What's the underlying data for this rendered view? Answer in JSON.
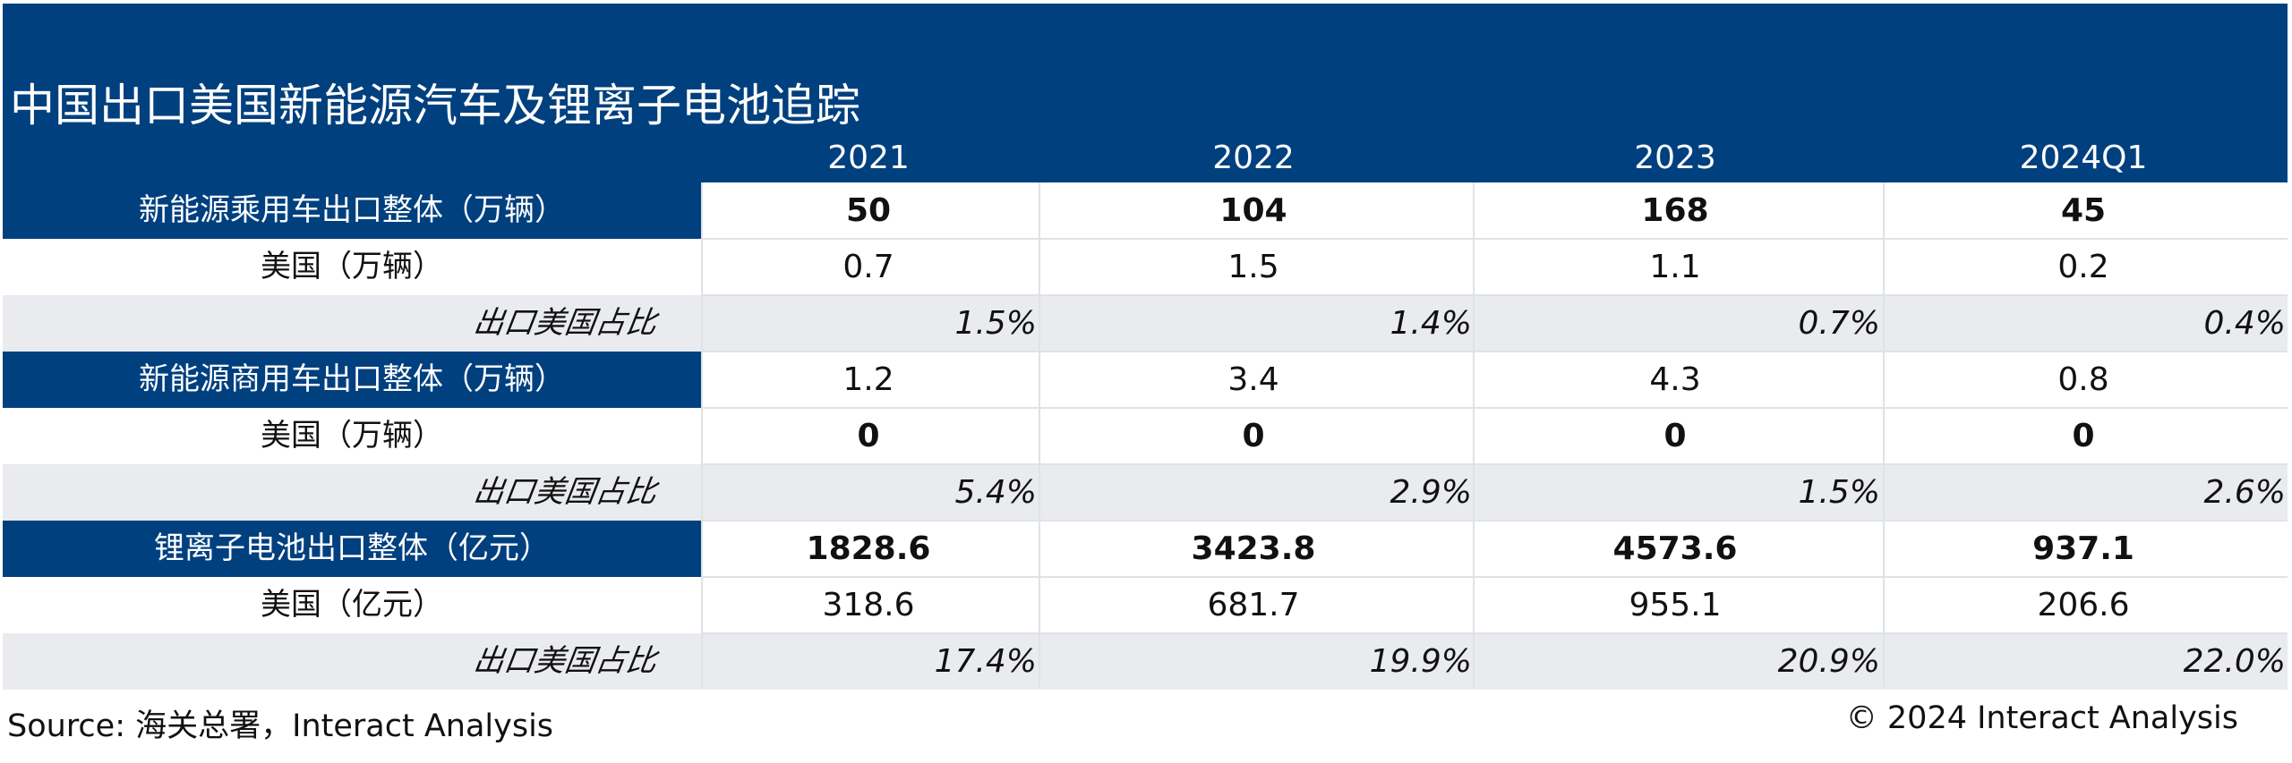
{
  "chart_data": {
    "type": "table",
    "title": "中国出口美国新能源汽车及锂离子电池追踪",
    "columns": [
      "2021",
      "2022",
      "2023",
      "2024Q1"
    ],
    "rows": [
      {
        "label": "新能源乘用车出口整体（万辆）",
        "values": [
          "50",
          "104",
          "168",
          "45"
        ],
        "style": "section",
        "bold": true
      },
      {
        "label": "美国（万辆）",
        "values": [
          "0.7",
          "1.5",
          "1.1",
          "0.2"
        ],
        "style": "sub",
        "bold": false
      },
      {
        "label": "出口美国占比",
        "values": [
          "1.5%",
          "1.4%",
          "0.7%",
          "0.4%"
        ],
        "style": "share",
        "bold": false
      },
      {
        "label": "新能源商用车出口整体（万辆）",
        "values": [
          "1.2",
          "3.4",
          "4.3",
          "0.8"
        ],
        "style": "section",
        "bold": false
      },
      {
        "label": "美国（万辆）",
        "values": [
          "0",
          "0",
          "0",
          "0"
        ],
        "style": "sub",
        "bold": true
      },
      {
        "label": "出口美国占比",
        "values": [
          "5.4%",
          "2.9%",
          "1.5%",
          "2.6%"
        ],
        "style": "share",
        "bold": false
      },
      {
        "label": "锂离子电池出口整体（亿元）",
        "values": [
          "1828.6",
          "3423.8",
          "4573.6",
          "937.1"
        ],
        "style": "section",
        "bold": true
      },
      {
        "label": "美国（亿元）",
        "values": [
          "318.6",
          "681.7",
          "955.1",
          "206.6"
        ],
        "style": "sub",
        "bold": false
      },
      {
        "label": "出口美国占比",
        "values": [
          "17.4%",
          "19.9%",
          "20.9%",
          "22.0%"
        ],
        "style": "share",
        "bold": false
      }
    ]
  },
  "footer": {
    "source": "Source: 海关总署，Interact Analysis",
    "copyright": "© 2024 Interact Analysis"
  },
  "colors": {
    "header_bg": "#00407f",
    "header_text": "#ffffff",
    "gray_row_bg": "#e9ebee",
    "grid_line": "#dfe2e6"
  }
}
